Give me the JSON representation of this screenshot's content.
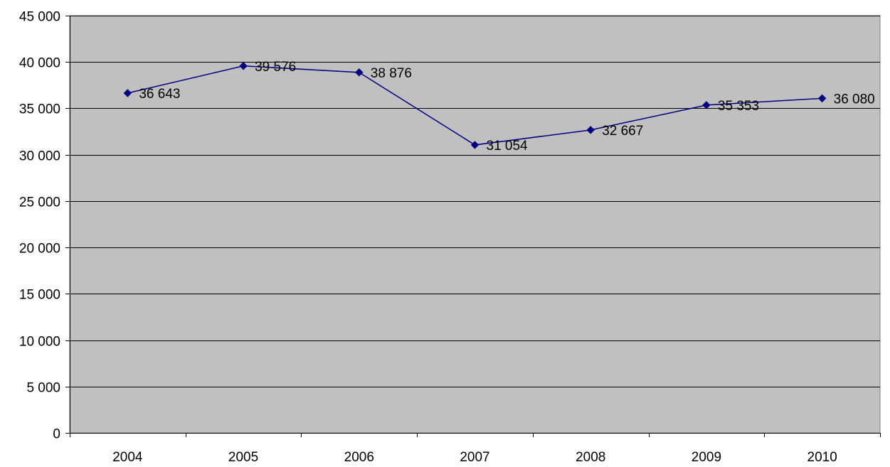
{
  "chart_data": {
    "type": "line",
    "categories": [
      "2004",
      "2005",
      "2006",
      "2007",
      "2008",
      "2009",
      "2010"
    ],
    "series": [
      {
        "values": [
          36643,
          39576,
          38876,
          31054,
          32667,
          35353,
          36080
        ],
        "labels": [
          "36 643",
          "39 576",
          "38 876",
          "31 054",
          "32 667",
          "35 353",
          "36 080"
        ],
        "color": "#000080"
      }
    ],
    "ylim": [
      0,
      45000
    ],
    "yticks": [
      0,
      5000,
      10000,
      15000,
      20000,
      25000,
      30000,
      35000,
      40000,
      45000
    ],
    "ytick_labels": [
      "0",
      "5 000",
      "10 000",
      "15 000",
      "20 000",
      "25 000",
      "30 000",
      "35 000",
      "40 000",
      "45 000"
    ],
    "title": "",
    "xlabel": "",
    "ylabel": "",
    "grid": true,
    "legend": "none",
    "plot_background": "#c0c0c0",
    "gridline_color": "#000000",
    "marker": "diamond"
  }
}
